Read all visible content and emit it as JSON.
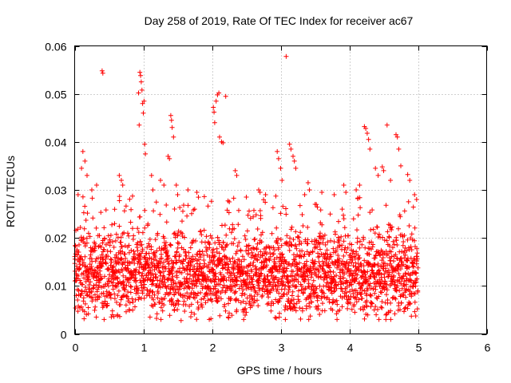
{
  "chart_data": {
    "type": "scatter",
    "title": "Day 258 of 2019, Rate Of TEC Index for receiver ac67",
    "xlabel": "GPS time / hours",
    "ylabel": "ROTI / TECUs",
    "xlim": [
      0,
      6
    ],
    "ylim": [
      0,
      0.06
    ],
    "xticks": [
      0,
      1,
      2,
      3,
      4,
      5,
      6
    ],
    "xtick_labels": [
      "0",
      "1",
      "2",
      "3",
      "4",
      "5",
      "6"
    ],
    "yticks": [
      0,
      0.01,
      0.02,
      0.03,
      0.04,
      0.05,
      0.06
    ],
    "ytick_labels": [
      "0",
      "0.01",
      "0.02",
      "0.03",
      "0.04",
      "0.05",
      "0.06"
    ],
    "grid": true,
    "marker": "+",
    "marker_color": "#ff0000",
    "series": [
      {
        "name": "ROTI",
        "points": [
          [
            0.4,
            0.0548
          ],
          [
            0.41,
            0.0543
          ],
          [
            0.95,
            0.0545
          ],
          [
            0.96,
            0.0538
          ],
          [
            0.97,
            0.0525
          ],
          [
            0.98,
            0.0508
          ],
          [
            0.99,
            0.048
          ],
          [
            1.0,
            0.046
          ],
          [
            1.01,
            0.0485
          ],
          [
            0.93,
            0.0502
          ],
          [
            1.02,
            0.0395
          ],
          [
            1.03,
            0.0375
          ],
          [
            0.94,
            0.0435
          ],
          [
            1.12,
            0.033
          ],
          [
            1.14,
            0.03
          ],
          [
            1.36,
            0.037
          ],
          [
            1.38,
            0.0365
          ],
          [
            1.4,
            0.0455
          ],
          [
            1.41,
            0.0445
          ],
          [
            1.42,
            0.043
          ],
          [
            1.44,
            0.041
          ],
          [
            1.48,
            0.031
          ],
          [
            1.5,
            0.029
          ],
          [
            2.02,
            0.0472
          ],
          [
            2.03,
            0.0462
          ],
          [
            2.04,
            0.044
          ],
          [
            2.06,
            0.0485
          ],
          [
            2.08,
            0.0498
          ],
          [
            2.1,
            0.0502
          ],
          [
            2.11,
            0.041
          ],
          [
            2.14,
            0.04
          ],
          [
            2.16,
            0.0398
          ],
          [
            2.2,
            0.0495
          ],
          [
            2.34,
            0.034
          ],
          [
            2.36,
            0.033
          ],
          [
            2.68,
            0.03
          ],
          [
            2.7,
            0.0295
          ],
          [
            2.95,
            0.038
          ],
          [
            2.97,
            0.0365
          ],
          [
            3.0,
            0.0345
          ],
          [
            3.02,
            0.032
          ],
          [
            3.08,
            0.0578
          ],
          [
            3.13,
            0.0395
          ],
          [
            3.15,
            0.0385
          ],
          [
            3.18,
            0.037
          ],
          [
            3.2,
            0.036
          ],
          [
            3.22,
            0.0345
          ],
          [
            3.4,
            0.0315
          ],
          [
            3.42,
            0.03
          ],
          [
            3.92,
            0.031
          ],
          [
            3.95,
            0.0295
          ],
          [
            4.22,
            0.0432
          ],
          [
            4.24,
            0.0428
          ],
          [
            4.26,
            0.0418
          ],
          [
            4.28,
            0.0405
          ],
          [
            4.3,
            0.0385
          ],
          [
            4.48,
            0.0348
          ],
          [
            4.5,
            0.034
          ],
          [
            4.55,
            0.0435
          ],
          [
            4.68,
            0.0415
          ],
          [
            4.7,
            0.041
          ],
          [
            4.72,
            0.0385
          ],
          [
            4.85,
            0.0332
          ],
          [
            4.88,
            0.032
          ],
          [
            2.98,
            0.0035
          ],
          [
            1.55,
            0.0028
          ],
          [
            0.2,
            0.0042
          ],
          [
            0.55,
            0.0048
          ],
          [
            1.2,
            0.0042
          ],
          [
            1.7,
            0.0045
          ],
          [
            2.45,
            0.005
          ],
          [
            3.55,
            0.0052
          ],
          [
            4.08,
            0.0045
          ],
          [
            4.6,
            0.0048
          ],
          [
            4.82,
            0.0055
          ],
          [
            0.05,
            0.029
          ],
          [
            0.1,
            0.0345
          ],
          [
            0.12,
            0.038
          ],
          [
            0.15,
            0.036
          ],
          [
            0.18,
            0.033
          ],
          [
            0.25,
            0.03
          ],
          [
            0.32,
            0.031
          ],
          [
            0.65,
            0.033
          ],
          [
            0.68,
            0.032
          ],
          [
            0.7,
            0.031
          ],
          [
            1.25,
            0.032
          ],
          [
            1.3,
            0.031
          ],
          [
            1.65,
            0.03
          ],
          [
            1.78,
            0.0295
          ],
          [
            2.5,
            0.0285
          ],
          [
            2.78,
            0.029
          ],
          [
            3.35,
            0.029
          ],
          [
            3.6,
            0.0295
          ],
          [
            3.78,
            0.029
          ],
          [
            4.1,
            0.03
          ],
          [
            4.15,
            0.031
          ],
          [
            4.38,
            0.0345
          ],
          [
            4.42,
            0.033
          ],
          [
            4.6,
            0.032
          ],
          [
            4.75,
            0.035
          ],
          [
            4.95,
            0.029
          ],
          [
            4.98,
            0.028
          ]
        ]
      }
    ],
    "dense_band": {
      "x_range": [
        0,
        5.0
      ],
      "typical_min": 0.005,
      "typical_max": 0.025,
      "center": 0.0125,
      "note": "dense cloud of '+' markers spanning the full 0-5 h interval"
    }
  }
}
